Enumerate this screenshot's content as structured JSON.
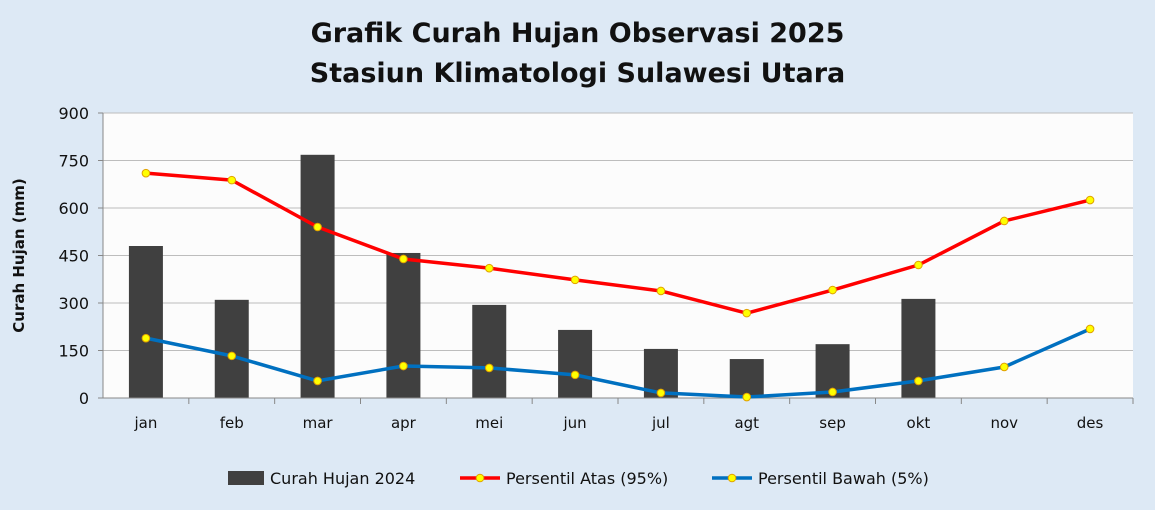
{
  "chart_data": {
    "type": "bar+line",
    "title": "Grafik Curah Hujan Observasi 2025",
    "subtitle": "Stasiun Klimatologi Sulawesi Utara",
    "xlabel": "",
    "ylabel": "Curah Hujan (mm)",
    "ylim": [
      0,
      900
    ],
    "yticks": [
      "0",
      "150",
      "300",
      "450",
      "600",
      "750",
      "900"
    ],
    "grid": true,
    "legend_position": "bottom",
    "categories": [
      "jan",
      "feb",
      "mar",
      "apr",
      "mei",
      "jun",
      "jul",
      "agt",
      "sep",
      "okt",
      "nov",
      "des"
    ],
    "series": [
      {
        "name": "Curah Hujan 2024",
        "type": "bar",
        "color": "#404040",
        "values": [
          480,
          310,
          768,
          458,
          294,
          215,
          155,
          123,
          170,
          313,
          null,
          null
        ]
      },
      {
        "name": "Persentil Atas (95%)",
        "type": "line",
        "color": "#ff0000",
        "values": [
          710,
          688,
          540,
          439,
          410,
          373,
          338,
          268,
          341,
          420,
          559,
          625
        ]
      },
      {
        "name": "Persentil Bawah (5%)",
        "type": "line",
        "color": "#0070c0",
        "values": [
          189,
          133,
          54,
          101,
          95,
          73,
          16,
          3,
          19,
          54,
          98,
          218
        ]
      }
    ]
  }
}
